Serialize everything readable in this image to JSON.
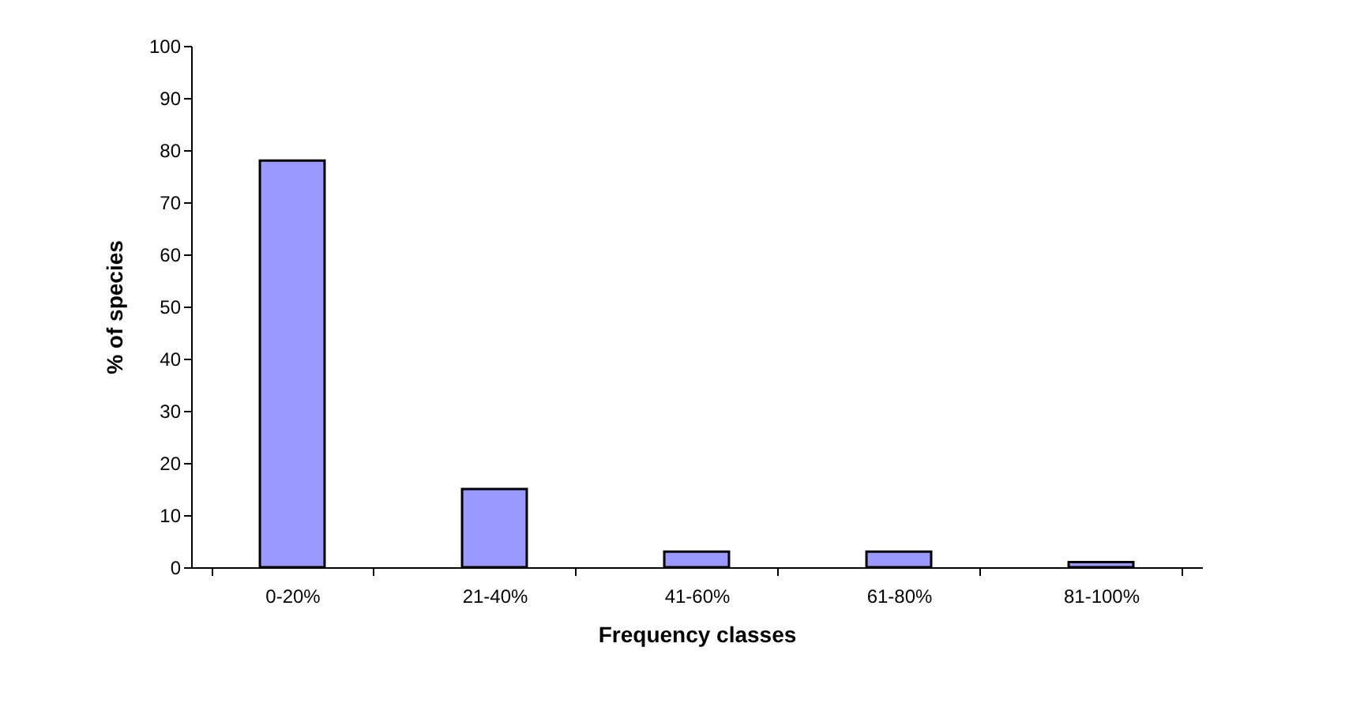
{
  "chart_data": {
    "type": "bar",
    "xlabel": "Frequency classes",
    "ylabel": "% of species",
    "categories": [
      "0-20%",
      "21-40%",
      "41-60%",
      "61-80%",
      "81-100%"
    ],
    "values": [
      78,
      15,
      3,
      3,
      1
    ],
    "color": "#9999ff",
    "ylim": [
      0,
      100
    ],
    "yticks": [
      0,
      10,
      20,
      30,
      40,
      50,
      60,
      70,
      80,
      90,
      100
    ],
    "grid": false
  }
}
